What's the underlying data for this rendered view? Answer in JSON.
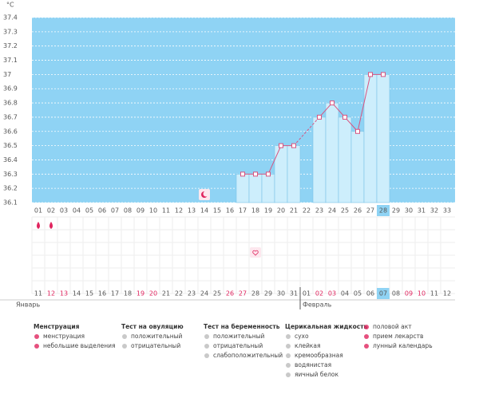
{
  "chart_data": {
    "type": "line",
    "y_unit": "°C",
    "color": "#d9537f",
    "bar_color": "#cdeefc",
    "background": "#8fd3f4",
    "categories": [
      "01",
      "02",
      "03",
      "04",
      "05",
      "06",
      "07",
      "08",
      "09",
      "10",
      "11",
      "12",
      "13",
      "14",
      "15",
      "16",
      "17",
      "18",
      "19",
      "20",
      "21",
      "22",
      "23",
      "24",
      "25",
      "26",
      "27",
      "28",
      "29",
      "30",
      "31",
      "32",
      "33"
    ],
    "values": [
      null,
      null,
      null,
      null,
      null,
      null,
      null,
      null,
      null,
      null,
      null,
      null,
      null,
      null,
      null,
      null,
      36.3,
      36.3,
      36.3,
      36.5,
      36.5,
      null,
      36.7,
      36.8,
      36.7,
      36.6,
      37.0,
      37.0,
      null,
      null,
      null,
      null,
      null
    ],
    "ylim": [
      36.1,
      37.4
    ],
    "yticks": [
      36.1,
      36.2,
      36.3,
      36.4,
      36.5,
      36.6,
      36.7,
      36.8,
      36.9,
      37,
      37.1,
      37.2,
      37.3,
      37.4
    ],
    "grid": true,
    "highlight": "28",
    "dates": [
      {
        "label": "11"
      },
      {
        "label": "12",
        "weekend": true
      },
      {
        "label": "13",
        "weekend": true
      },
      {
        "label": "14"
      },
      {
        "label": "15"
      },
      {
        "label": "16"
      },
      {
        "label": "17"
      },
      {
        "label": "18"
      },
      {
        "label": "19",
        "weekend": true
      },
      {
        "label": "20",
        "weekend": true
      },
      {
        "label": "21"
      },
      {
        "label": "22"
      },
      {
        "label": "23"
      },
      {
        "label": "24"
      },
      {
        "label": "25"
      },
      {
        "label": "26",
        "weekend": true
      },
      {
        "label": "27",
        "weekend": true
      },
      {
        "label": "28"
      },
      {
        "label": "29"
      },
      {
        "label": "30"
      },
      {
        "label": "31"
      },
      {
        "label": "01"
      },
      {
        "label": "02",
        "weekend": true
      },
      {
        "label": "03",
        "weekend": true
      },
      {
        "label": "04"
      },
      {
        "label": "05"
      },
      {
        "label": "06"
      },
      {
        "label": "07"
      },
      {
        "label": "08"
      },
      {
        "label": "09",
        "weekend": true
      },
      {
        "label": "10",
        "weekend": true
      },
      {
        "label": "11"
      },
      {
        "label": "12"
      }
    ],
    "months": [
      {
        "label": "Январь",
        "start": 0
      },
      {
        "label": "Февраль",
        "start": 21
      }
    ],
    "events": [
      {
        "day": "01",
        "type": "menstruation"
      },
      {
        "day": "02",
        "type": "menstruation"
      },
      {
        "day": "14",
        "type": "moon"
      },
      {
        "day": "18",
        "type": "sex"
      }
    ]
  },
  "legend": [
    {
      "title": "Менструация",
      "items": [
        "менструация",
        "небольшие выделения"
      ]
    },
    {
      "title": "Тест на овуляцию",
      "items": [
        "положительный",
        "отрицательный"
      ]
    },
    {
      "title": "Тест на беременность",
      "items": [
        "положительный",
        "отрицательный",
        "слабоположительный"
      ]
    },
    {
      "title": "Церикальная жидкость",
      "items": [
        "сухо",
        "клейкая",
        "кремообразная",
        "водянистая",
        "яичный белок"
      ]
    },
    {
      "items": [
        "половой акт",
        "прием лекарств",
        "лунный календарь"
      ]
    }
  ]
}
